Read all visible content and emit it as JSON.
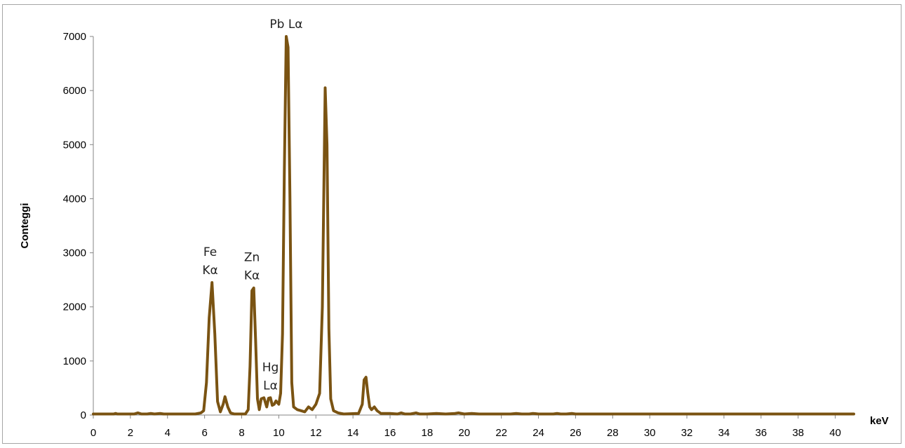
{
  "chart_data": {
    "type": "line",
    "title": "",
    "xlabel": "keV",
    "ylabel": "Conteggi",
    "xlim": [
      0,
      41
    ],
    "ylim": [
      0,
      7000
    ],
    "x_ticks": [
      0,
      2,
      4,
      6,
      8,
      10,
      12,
      14,
      16,
      18,
      20,
      22,
      24,
      26,
      28,
      30,
      32,
      34,
      36,
      38,
      40
    ],
    "y_ticks": [
      0,
      1000,
      2000,
      3000,
      4000,
      5000,
      6000,
      7000
    ],
    "grid": false,
    "legend": "none",
    "line_color": "#7a5312",
    "series": [
      {
        "x": [
          0,
          1.1,
          1.2,
          1.3,
          2.2,
          2.4,
          2.6,
          2.9,
          3.1,
          3.3,
          3.6,
          3.8,
          4.0,
          5.5,
          5.8,
          5.95,
          6.1,
          6.25,
          6.4,
          6.55,
          6.7,
          6.85,
          7.0,
          7.1,
          7.25,
          7.4,
          7.6,
          8.2,
          8.35,
          8.45,
          8.55,
          8.65,
          8.75,
          8.85,
          8.95,
          9.05,
          9.2,
          9.35,
          9.45,
          9.55,
          9.65,
          9.75,
          9.85,
          10.0,
          10.1,
          10.2,
          10.3,
          10.4,
          10.5,
          10.6,
          10.7,
          10.8,
          11.0,
          11.2,
          11.4,
          11.6,
          11.8,
          12.0,
          12.2,
          12.35,
          12.5,
          12.6,
          12.7,
          12.8,
          12.95,
          13.2,
          13.5,
          14.3,
          14.5,
          14.6,
          14.7,
          14.8,
          14.9,
          15.0,
          15.15,
          15.3,
          15.5,
          16.0,
          16.4,
          16.6,
          16.8,
          17.1,
          17.4,
          17.6,
          18.0,
          18.5,
          19.0,
          19.5,
          19.7,
          20.0,
          20.4,
          20.8,
          21.1,
          22.5,
          22.8,
          23.1,
          23.5,
          23.7,
          24.0,
          24.8,
          25.0,
          25.2,
          25.5,
          25.8,
          26.0,
          41
        ]
      }
    ],
    "y_values": [
      20,
      20,
      30,
      20,
      20,
      40,
      20,
      20,
      30,
      20,
      30,
      20,
      20,
      20,
      40,
      80,
      600,
      1800,
      2450,
      1500,
      250,
      60,
      200,
      340,
      150,
      40,
      20,
      20,
      100,
      900,
      2300,
      2350,
      1400,
      300,
      100,
      300,
      320,
      150,
      310,
      320,
      180,
      200,
      260,
      200,
      400,
      1500,
      4500,
      7000,
      6800,
      4000,
      600,
      150,
      100,
      80,
      60,
      150,
      100,
      200,
      400,
      2000,
      6050,
      5000,
      1600,
      300,
      80,
      40,
      20,
      30,
      200,
      650,
      700,
      400,
      150,
      100,
      150,
      80,
      30,
      30,
      20,
      40,
      20,
      20,
      40,
      20,
      20,
      30,
      20,
      30,
      40,
      20,
      30,
      20,
      20,
      20,
      30,
      20,
      20,
      30,
      20,
      20,
      30,
      20,
      20,
      30,
      20,
      20
    ],
    "annotations": [
      {
        "lines": [
          "Fe",
          "Kα"
        ],
        "x": 6.3,
        "y": 2450
      },
      {
        "lines": [
          "Zn",
          "Kα"
        ],
        "x": 8.55,
        "y": 2350
      },
      {
        "lines": [
          "Hg",
          "Lα"
        ],
        "x": 9.55,
        "y": 320
      },
      {
        "lines": [
          "Pb Lα"
        ],
        "x": 10.4,
        "y": 7000
      }
    ]
  }
}
